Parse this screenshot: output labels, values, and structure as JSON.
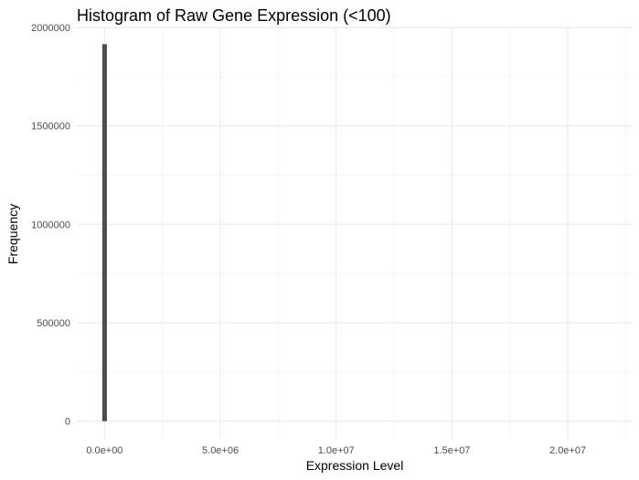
{
  "chart_data": {
    "type": "bar",
    "title": "Histogram of Raw Gene Expression (<100)",
    "xlabel": "Expression Level",
    "ylabel": "Frequency",
    "xlim": [
      -1200000,
      22800000
    ],
    "ylim": [
      -90000,
      2000000
    ],
    "x_ticks": [
      0,
      5000000,
      10000000,
      15000000,
      20000000
    ],
    "x_tick_labels": [
      "0.0e+00",
      "5.0e+06",
      "1.0e+07",
      "1.5e+07",
      "2.0e+07"
    ],
    "y_ticks": [
      0,
      500000,
      1000000,
      1500000,
      2000000
    ],
    "y_tick_labels": [
      "0",
      "500000",
      "1000000",
      "1500000",
      "2000000"
    ],
    "bins": [
      {
        "x_start": -100000,
        "x_end": 100000,
        "count": 1915000
      }
    ],
    "grid": true,
    "legend": "none",
    "colors": {
      "bar": "#4d4d4d",
      "grid_major": "#ebebeb",
      "grid_minor": "#f5f5f5",
      "background": "#ffffff"
    }
  }
}
